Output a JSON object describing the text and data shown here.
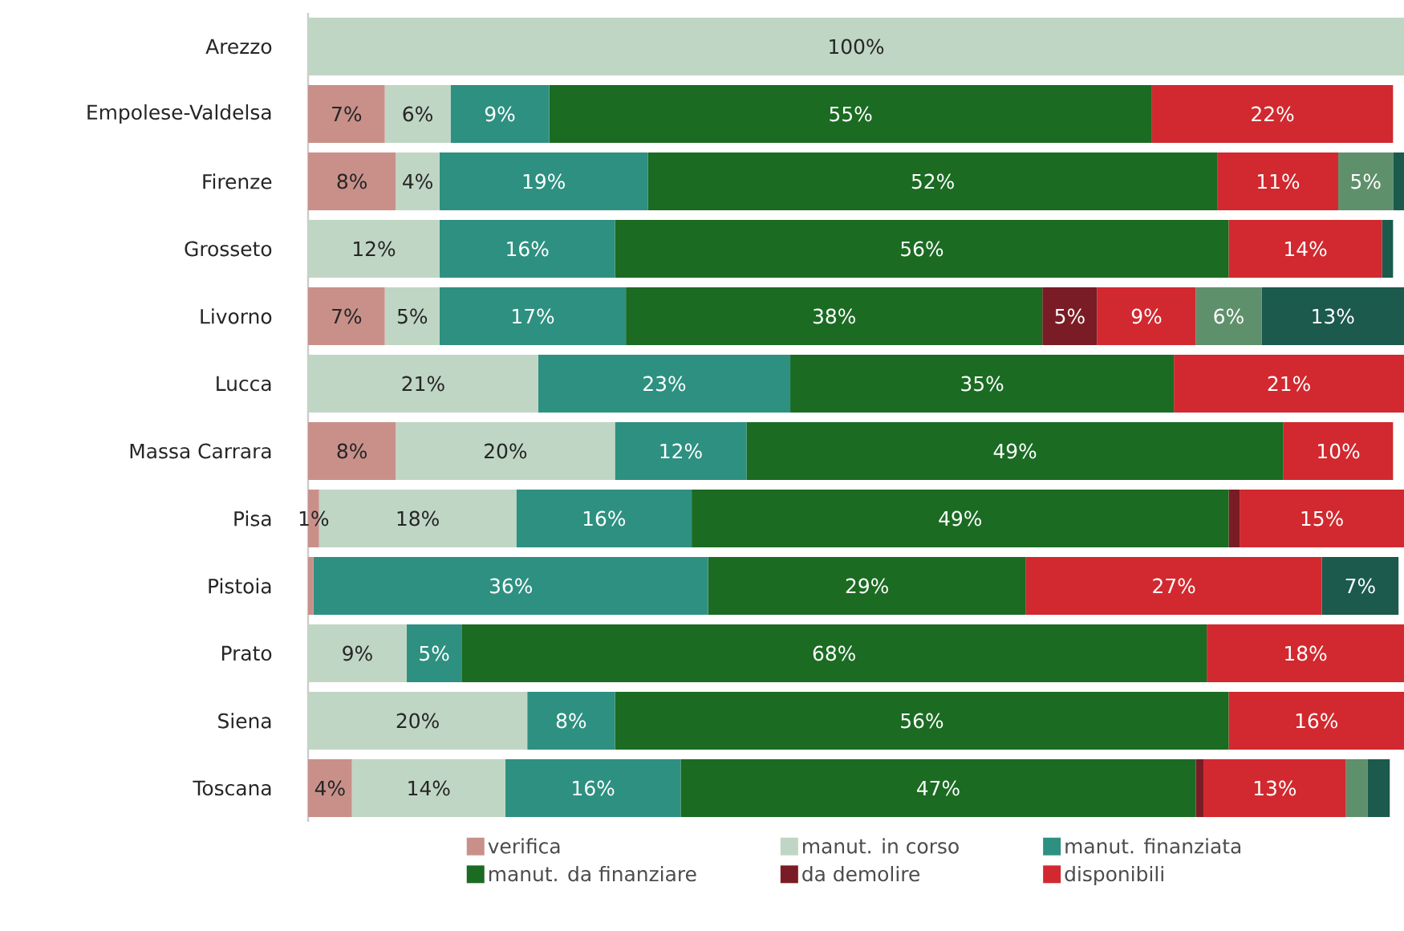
{
  "chart_data": {
    "type": "bar",
    "orientation": "horizontal",
    "stacked": true,
    "categories": [
      "Arezzo",
      "Empolese-Valdelsa",
      "Firenze",
      "Grosseto",
      "Livorno",
      "Lucca",
      "Massa Carrara",
      "Pisa",
      "Pistoia",
      "Prato",
      "Siena",
      "Toscana"
    ],
    "xlim": [
      0,
      100
    ],
    "series": [
      {
        "name": "verifica",
        "color": "#c9908a",
        "values": [
          0,
          7,
          8,
          0,
          7,
          0,
          8,
          1,
          0.5,
          0,
          0,
          4
        ],
        "value_labels": [
          null,
          "7%",
          "8%",
          null,
          "7%",
          null,
          "8%",
          "1%",
          null,
          null,
          null,
          "4%"
        ]
      },
      {
        "name": "manut. in corso",
        "color": "#c0d6c4",
        "values": [
          100,
          6,
          4,
          12,
          5,
          21,
          20,
          18,
          0,
          9,
          20,
          14
        ],
        "value_labels": [
          "100%",
          "6%",
          "4%",
          "12%",
          "5%",
          "21%",
          "20%",
          "18%",
          null,
          "9%",
          "20%",
          "14%"
        ]
      },
      {
        "name": "manut. finanziata",
        "color": "#2e9080",
        "values": [
          0,
          9,
          19,
          16,
          17,
          23,
          12,
          16,
          36,
          5,
          8,
          16
        ],
        "value_labels": [
          null,
          "9%",
          "19%",
          "16%",
          "17%",
          "23%",
          "12%",
          "16%",
          "36%",
          "5%",
          "8%",
          "16%"
        ]
      },
      {
        "name": "manut. da finanziare",
        "color": "#1b6b23",
        "values": [
          0,
          55,
          52,
          56,
          38,
          35,
          49,
          49,
          29,
          68,
          56,
          47
        ],
        "value_labels": [
          null,
          "55%",
          "52%",
          "56%",
          "38%",
          "35%",
          "49%",
          "49%",
          "29%",
          "68%",
          "56%",
          "47%"
        ]
      },
      {
        "name": "da demolire",
        "color": "#7a1c25",
        "values": [
          0,
          0,
          0,
          0,
          5,
          0,
          0,
          1,
          0,
          0,
          0,
          0.7
        ],
        "value_labels": [
          null,
          null,
          null,
          null,
          "5%",
          null,
          null,
          null,
          null,
          null,
          null,
          null
        ]
      },
      {
        "name": "disponibili",
        "color": "#d1292f",
        "values": [
          0,
          22,
          11,
          14,
          9,
          21,
          10,
          15,
          27,
          18,
          16,
          13
        ],
        "value_labels": [
          null,
          "22%",
          "11%",
          "14%",
          "9%",
          "21%",
          "10%",
          "15%",
          "27%",
          "18%",
          "16%",
          "13%"
        ]
      },
      {
        "color": "#5f906c",
        "values": [
          0,
          0,
          5,
          0,
          6,
          0,
          0,
          0,
          0,
          0,
          0,
          2
        ],
        "value_labels": [
          null,
          null,
          "5%",
          null,
          "6%",
          null,
          null,
          null,
          null,
          null,
          null,
          null
        ]
      },
      {
        "color": "#1b5a4d",
        "values": [
          0,
          0,
          1,
          1,
          13,
          0,
          0,
          0,
          7,
          0,
          0,
          2
        ],
        "value_labels": [
          null,
          null,
          null,
          null,
          "13%",
          null,
          null,
          null,
          "7%",
          null,
          null,
          null
        ]
      }
    ],
    "legend": "bottom"
  }
}
